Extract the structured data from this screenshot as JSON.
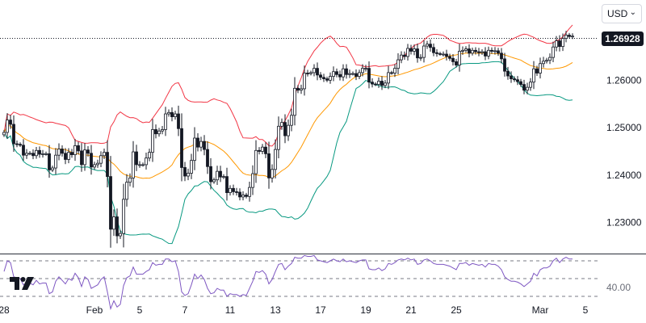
{
  "currency_selector": {
    "label": "USD",
    "chevron_icon": "chevron-down-icon"
  },
  "last_price_label": "1.26928",
  "brand": {
    "icon": "tradingview-logo-icon"
  },
  "colors": {
    "candle": "#131722",
    "upper_band": "#f23645",
    "middle_band": "#ff9800",
    "lower_band": "#089981",
    "rsi_line": "#7e57c2",
    "grid_dash": "#787b86"
  },
  "chart_data": [
    {
      "type": "candlestick",
      "title": "",
      "xlabel": "",
      "ylabel": "",
      "ylim": [
        1.225,
        1.2735
      ],
      "y_ticks": [
        "1.23000",
        "1.24000",
        "1.25000",
        "1.26000"
      ],
      "x_ticks": [
        {
          "label": "28",
          "index": 0
        },
        {
          "label": "Feb",
          "index": 28
        },
        {
          "label": "5",
          "index": 42
        },
        {
          "label": "7",
          "index": 56
        },
        {
          "label": "11",
          "index": 70
        },
        {
          "label": "13",
          "index": 84
        },
        {
          "label": "17",
          "index": 98
        },
        {
          "label": "19",
          "index": 112
        },
        {
          "label": "21",
          "index": 126
        },
        {
          "label": "25",
          "index": 140
        },
        {
          "label": "Mar",
          "index": 166
        },
        {
          "label": "5",
          "index": 180
        }
      ],
      "last_price": 1.26928,
      "bar_count": 177,
      "close": [
        1.249,
        1.2516,
        1.2507,
        1.2466,
        1.2465,
        1.2463,
        1.2442,
        1.2446,
        1.2446,
        1.2441,
        1.2452,
        1.2444,
        1.2445,
        1.2445,
        1.2411,
        1.2415,
        1.2442,
        1.2455,
        1.2446,
        1.2433,
        1.2448,
        1.2443,
        1.2462,
        1.2451,
        1.2422,
        1.2453,
        1.2446,
        1.2417,
        1.2422,
        1.2425,
        1.2441,
        1.2448,
        1.2397,
        1.2286,
        1.2312,
        1.2272,
        1.2277,
        1.2349,
        1.2385,
        1.2394,
        1.2449,
        1.2422,
        1.2422,
        1.2422,
        1.2436,
        1.2448,
        1.2496,
        1.2487,
        1.2493,
        1.2496,
        1.2529,
        1.2532,
        1.2523,
        1.2529,
        1.2498,
        1.2416,
        1.2398,
        1.2404,
        1.2431,
        1.2478,
        1.2459,
        1.2471,
        1.2454,
        1.2418,
        1.2386,
        1.239,
        1.2408,
        1.2396,
        1.2397,
        1.2363,
        1.2372,
        1.2365,
        1.2364,
        1.2354,
        1.2358,
        1.2355,
        1.2374,
        1.2403,
        1.2452,
        1.245,
        1.2459,
        1.2445,
        1.2394,
        1.2412,
        1.2454,
        1.2503,
        1.2511,
        1.2483,
        1.2505,
        1.2526,
        1.2583,
        1.2579,
        1.2582,
        1.2615,
        1.2614,
        1.2616,
        1.2625,
        1.2611,
        1.2606,
        1.2603,
        1.26,
        1.2608,
        1.2618,
        1.2612,
        1.2607,
        1.2624,
        1.2612,
        1.2614,
        1.2614,
        1.2608,
        1.2616,
        1.2625,
        1.2625,
        1.2596,
        1.2592,
        1.2591,
        1.2598,
        1.2589,
        1.2594,
        1.2616,
        1.2615,
        1.2625,
        1.2643,
        1.2653,
        1.265,
        1.2667,
        1.2661,
        1.2666,
        1.2647,
        1.2648,
        1.2672,
        1.2676,
        1.2669,
        1.2658,
        1.2656,
        1.2655,
        1.2655,
        1.265,
        1.2646,
        1.2639,
        1.2632,
        1.2661,
        1.2663,
        1.2666,
        1.2657,
        1.2663,
        1.266,
        1.2658,
        1.266,
        1.2651,
        1.2663,
        1.2661,
        1.2662,
        1.2657,
        1.2645,
        1.2619,
        1.2609,
        1.2603,
        1.2601,
        1.2597,
        1.2591,
        1.2579,
        1.2585,
        1.2596,
        1.2624,
        1.2615,
        1.2635,
        1.264,
        1.2642,
        1.2648,
        1.267,
        1.2683,
        1.2671,
        1.2688,
        1.2695,
        1.2692,
        1.2693
      ],
      "rsi": {
        "ylim": [
          0,
          100
        ],
        "levels": [
          70,
          50,
          30
        ],
        "tick_labels": [
          {
            "label": "40.00",
            "value": 40
          }
        ],
        "values": [
          58,
          70,
          68,
          52,
          51,
          50,
          43,
          45,
          45,
          43,
          48,
          44,
          45,
          45,
          33,
          35,
          47,
          52,
          48,
          44,
          50,
          48,
          56,
          51,
          41,
          52,
          49,
          39,
          41,
          43,
          49,
          52,
          35,
          16,
          25,
          18,
          21,
          42,
          51,
          53,
          63,
          55,
          55,
          55,
          58,
          60,
          68,
          65,
          66,
          66,
          72,
          72,
          69,
          70,
          58,
          35,
          31,
          33,
          43,
          55,
          50,
          54,
          49,
          39,
          33,
          34,
          39,
          37,
          37,
          30,
          33,
          32,
          32,
          30,
          32,
          31,
          39,
          47,
          58,
          57,
          59,
          55,
          44,
          49,
          58,
          66,
          67,
          60,
          64,
          67,
          74,
          73,
          73,
          76,
          75,
          75,
          76,
          71,
          70,
          69,
          68,
          70,
          72,
          70,
          69,
          72,
          69,
          70,
          69,
          68,
          70,
          71,
          71,
          61,
          60,
          60,
          62,
          59,
          61,
          67,
          66,
          68,
          71,
          72,
          71,
          73,
          71,
          72,
          66,
          67,
          71,
          72,
          70,
          67,
          66,
          66,
          66,
          65,
          64,
          62,
          60,
          67,
          67,
          68,
          65,
          67,
          66,
          65,
          66,
          63,
          67,
          66,
          66,
          64,
          60,
          52,
          49,
          47,
          47,
          46,
          44,
          41,
          44,
          47,
          56,
          53,
          60,
          62,
          62,
          64,
          70,
          73,
          68,
          72,
          74,
          72,
          72
        ]
      }
    }
  ]
}
